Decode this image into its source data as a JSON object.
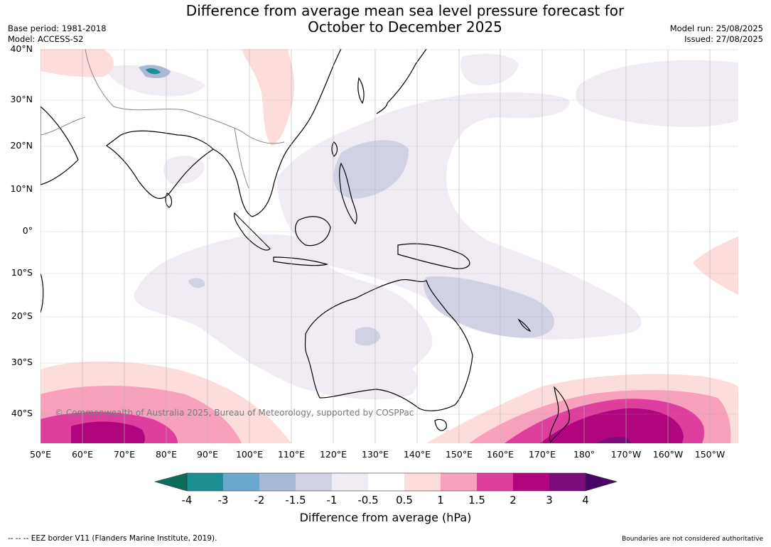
{
  "title": {
    "line1": "Difference from average mean sea level pressure forecast for",
    "line2": "October to December 2025"
  },
  "meta": {
    "base_period": "Base period: 1981-2018",
    "model": "Model: ACCESS-S2",
    "model_run": "Model run: 25/08/2025",
    "issued": "Issued: 27/08/2025"
  },
  "map": {
    "lat_labels": [
      "40°N",
      "30°N",
      "20°N",
      "10°N",
      "0°",
      "10°S",
      "20°S",
      "30°S",
      "40°S"
    ],
    "lon_labels": [
      "50°E",
      "60°E",
      "70°E",
      "80°E",
      "90°E",
      "100°E",
      "110°E",
      "120°E",
      "130°E",
      "140°E",
      "150°E",
      "160°E",
      "170°E",
      "180°",
      "170°W",
      "160°W",
      "150°W"
    ],
    "copyright": "© Commonwealth of Australia 2025, Bureau of Meteorology, supported by COSPPac"
  },
  "colorbar": {
    "label": "Difference from average (hPa)",
    "ticks": [
      "-4",
      "-3",
      "-2",
      "-1.5",
      "-1",
      "-0.5",
      "0.5",
      "1",
      "1.5",
      "2",
      "3",
      "4"
    ],
    "colors": [
      "#0e6e5e",
      "#1b8f94",
      "#6aa8ce",
      "#a9b9d4",
      "#d0d2e4",
      "#f1ecf4",
      "#ffffff",
      "#fddcdc",
      "#f7a1bd",
      "#de3e9e",
      "#b0057e",
      "#7c0b7c",
      "#4a0366"
    ]
  },
  "footer": {
    "eez": "--  --  -- EEZ border V11 (Flanders Marine Institute, 2019).",
    "boundaries": "Boundaries are not considered authoritative"
  }
}
